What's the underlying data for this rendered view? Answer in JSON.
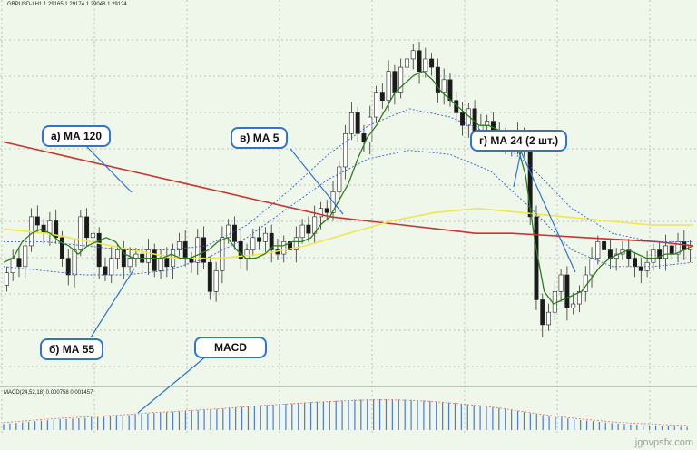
{
  "window": {
    "symbol_line": "GBPUSD-I,H1  1.29165 1.29174 1.29048 1.29124",
    "macd_line": "MACD(24,52,18) 0.000758 0.001457"
  },
  "annotations": {
    "ma120": "а) МА 120",
    "ma55": "б) МА 55",
    "ma5": "в) МА 5",
    "ma24": "г) МА 24 (2 шт.)",
    "macd": "MACD"
  },
  "watermark": "jgovpsfx.com",
  "colors": {
    "background": "#eef7ea",
    "grid": "#a9b7a6",
    "candle_bull": "#ffffff",
    "candle_bear": "#1a1a1a",
    "ma120": "#c8352c",
    "ma55": "#f1e64a",
    "ma5": "#2e7d1e",
    "ma24": "#3a5fd6",
    "macd_hist": "#4d78d8",
    "macd_signal": "#e07a6a",
    "callout_border": "#2f74d0"
  },
  "chart_data": {
    "type": "candlestick",
    "price_closes": [
      1.28565,
      1.286,
      1.2858,
      1.2863,
      1.287,
      1.2868,
      1.2866,
      1.2869,
      1.2865,
      1.286,
      1.2856,
      1.2862,
      1.287,
      1.2865,
      1.2866,
      1.2858,
      1.2856,
      1.286,
      1.2862,
      1.2858,
      1.286,
      1.2861,
      1.2859,
      1.2862,
      1.2857,
      1.286,
      1.2858,
      1.2862,
      1.2864,
      1.286,
      1.2859,
      1.2865,
      1.2859,
      1.2852,
      1.2857,
      1.2865,
      1.2868,
      1.2864,
      1.286,
      1.2862,
      1.2865,
      1.2864,
      1.2866,
      1.2862,
      1.2861,
      1.2864,
      1.2862,
      1.2865,
      1.2868,
      1.2866,
      1.287,
      1.2872,
      1.2871,
      1.2876,
      1.2882,
      1.289,
      1.2895,
      1.289,
      1.2888,
      1.2894,
      1.29,
      1.2898,
      1.2905,
      1.29,
      1.2906,
      1.2908,
      1.291,
      1.2905,
      1.2908,
      1.2906,
      1.29,
      1.2903,
      1.2898,
      1.2895,
      1.2892,
      1.2896,
      1.289,
      1.2892,
      1.2893,
      1.2889,
      1.289,
      1.2887,
      1.2888,
      1.289,
      1.2886,
      1.287,
      1.285,
      1.2844,
      1.2847,
      1.2852,
      1.2856,
      1.2848,
      1.2849,
      1.2852,
      1.2856,
      1.286,
      1.2864,
      1.2862,
      1.286,
      1.2861,
      1.2862,
      1.286,
      1.2858,
      1.2857,
      1.2859,
      1.2862,
      1.286,
      1.2863,
      1.2861,
      1.2864,
      1.2862,
      1.2863
    ],
    "ma5": [
      1.2859,
      1.286,
      1.2864,
      1.2866,
      1.2867,
      1.2866,
      1.2864,
      1.2863,
      1.2861,
      1.2863,
      1.2864,
      1.2865,
      1.2864,
      1.2861,
      1.286,
      1.286,
      1.286,
      1.286,
      1.2861,
      1.286,
      1.286,
      1.2861,
      1.2862,
      1.2864,
      1.2865,
      1.2862,
      1.286,
      1.286,
      1.2861,
      1.2863,
      1.2863,
      1.2864,
      1.2864,
      1.2865,
      1.2868,
      1.287,
      1.2874,
      1.2878,
      1.2884,
      1.2889,
      1.2892,
      1.2896,
      1.29,
      1.2902,
      1.2904,
      1.2905,
      1.2903,
      1.29,
      1.2898,
      1.2896,
      1.2894,
      1.2892,
      1.2892,
      1.2891,
      1.289,
      1.2888,
      1.288,
      1.2864,
      1.2852,
      1.2849,
      1.285,
      1.2851,
      1.2852,
      1.2855,
      1.2858,
      1.286,
      1.2861,
      1.2862,
      1.2861,
      1.286,
      1.286,
      1.2861,
      1.2861,
      1.2862,
      1.2863
    ],
    "ma120": [
      1.2888,
      1.2886,
      1.2884,
      1.2882,
      1.288,
      1.2878,
      1.2876,
      1.2874,
      1.2872,
      1.287,
      1.2869,
      1.2868,
      1.2867,
      1.2866,
      1.2866,
      1.28655,
      1.2865,
      1.28645,
      1.2864,
      1.2863
    ],
    "ma55": [
      1.2867,
      1.2866,
      1.2864,
      1.2862,
      1.286,
      1.286,
      1.2861,
      1.2863,
      1.2866,
      1.2869,
      1.2871,
      1.2872,
      1.2871,
      1.287,
      1.2869,
      1.2868,
      1.2868
    ],
    "ma24_high": [
      1.2864,
      1.2864,
      1.2863,
      1.2862,
      1.2862,
      1.2863,
      1.2868,
      1.2876,
      1.2885,
      1.2892,
      1.2896,
      1.2894,
      1.289,
      1.2882,
      1.2872,
      1.2866,
      1.2864,
      1.2864
    ],
    "ma24_low": [
      1.2858,
      1.2857,
      1.2856,
      1.2856,
      1.2857,
      1.286,
      1.2865,
      1.2872,
      1.2879,
      1.2884,
      1.2886,
      1.2885,
      1.2881,
      1.2872,
      1.2862,
      1.2858,
      1.2858,
      1.2859
    ],
    "macd_hist": [
      0.2,
      0.25,
      0.3,
      0.35,
      0.38,
      0.42,
      0.45,
      0.5,
      0.55,
      0.58,
      0.62,
      0.66,
      0.7,
      0.75,
      0.8,
      0.84,
      0.88,
      0.92,
      0.95,
      0.98,
      1.0,
      1.0,
      0.98,
      0.95,
      0.9,
      0.84,
      0.78,
      0.7,
      0.6,
      0.5,
      0.42,
      0.34,
      0.28,
      0.22,
      0.18,
      0.15,
      0.12,
      0.1
    ],
    "ylim": [
      1.283,
      1.292
    ]
  }
}
